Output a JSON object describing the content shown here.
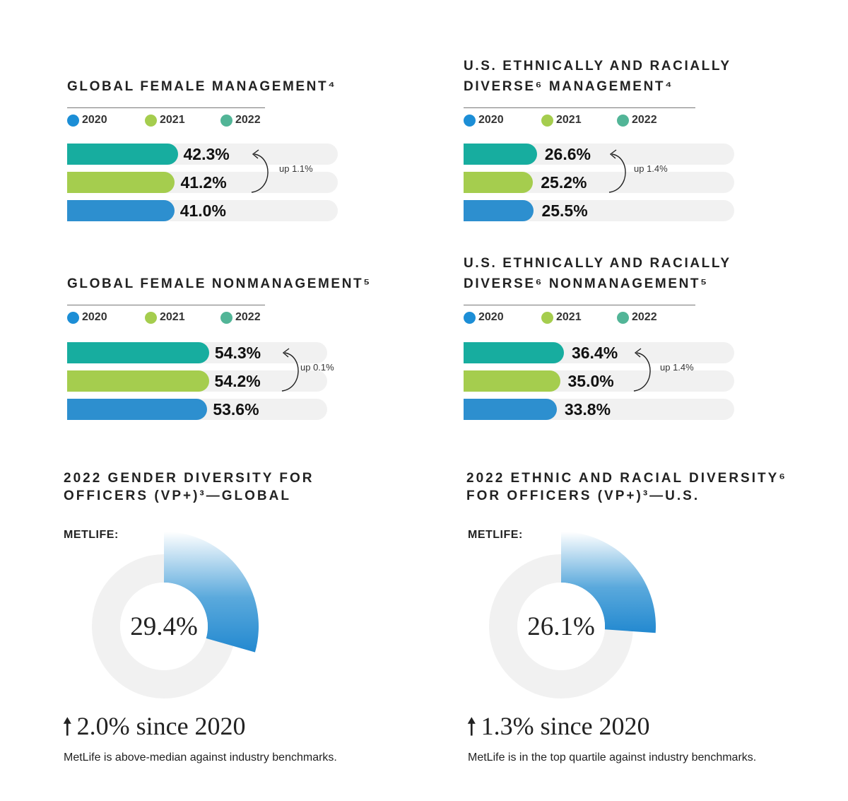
{
  "legend_labels": [
    "2020",
    "2021",
    "2022"
  ],
  "colors": {
    "2022": "#17ad9f",
    "2021": "#a5cd4e",
    "2020": "#2d8fcf",
    "leg2022": "#52b597",
    "leg2021": "#a5cd4e",
    "leg2020": "#1c8ed6",
    "track": "#f1f1f1"
  },
  "chart_data": [
    {
      "type": "bar",
      "title_lines": [
        "GLOBAL FEMALE MANAGEMENT⁴"
      ],
      "categories": [
        "2022",
        "2021",
        "2020"
      ],
      "values": [
        42.3,
        41.2,
        41.0
      ],
      "labels": [
        "42.3%",
        "41.2%",
        "41.0%"
      ],
      "annotation": "up 1.1%"
    },
    {
      "type": "bar",
      "title_lines": [
        "U.S. ETHNICALLY AND RACIALLY",
        "DIVERSE⁶ MANAGEMENT⁴"
      ],
      "categories": [
        "2022",
        "2021",
        "2020"
      ],
      "values": [
        26.6,
        25.2,
        25.5
      ],
      "labels": [
        "26.6%",
        "25.2%",
        "25.5%"
      ],
      "annotation": "up 1.4%"
    },
    {
      "type": "bar",
      "title_lines": [
        "GLOBAL FEMALE NONMANAGEMENT⁵"
      ],
      "categories": [
        "2022",
        "2021",
        "2020"
      ],
      "values": [
        54.3,
        54.2,
        53.6
      ],
      "labels": [
        "54.3%",
        "54.2%",
        "53.6%"
      ],
      "annotation": "up 0.1%"
    },
    {
      "type": "bar",
      "title_lines": [
        "U.S. ETHNICALLY AND RACIALLY",
        "DIVERSE⁶ NONMANAGEMENT⁵"
      ],
      "categories": [
        "2022",
        "2021",
        "2020"
      ],
      "values": [
        36.4,
        35.0,
        33.8
      ],
      "labels": [
        "36.4%",
        "35.0%",
        "33.8%"
      ],
      "annotation": "up 1.4%"
    },
    {
      "type": "pie",
      "title_lines": [
        "2022 GENDER DIVERSITY FOR",
        "OFFICERS (VP+)³—GLOBAL"
      ],
      "prefix": "METLIFE:",
      "value": 29.4,
      "center_label": "29.4%",
      "change": "2.0% since 2020",
      "note": "MetLife is above-median against industry benchmarks."
    },
    {
      "type": "pie",
      "title_lines": [
        "2022 ETHNIC AND RACIAL DIVERSITY⁶",
        "FOR OFFICERS (VP+)³—U.S."
      ],
      "prefix": "METLIFE:",
      "value": 26.1,
      "center_label": "26.1%",
      "change": "1.3% since 2020",
      "note": "MetLife is in the top quartile against industry benchmarks."
    }
  ]
}
